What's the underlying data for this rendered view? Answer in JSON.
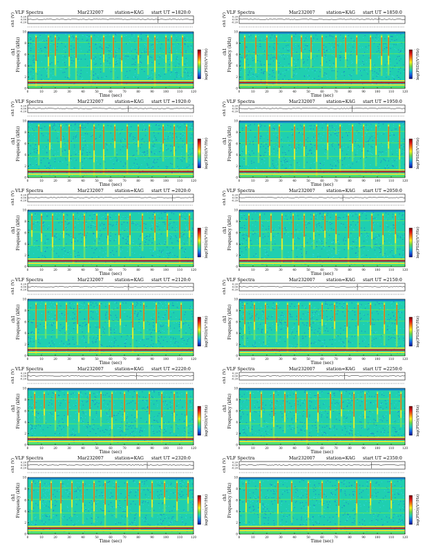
{
  "chart_data": [
    {
      "type": "heatmap",
      "title": "VLF Spectra",
      "date": "Mar232007",
      "station": "station=KAG",
      "start": "start  UT  =1820:0",
      "ylabel_top": "ch1 (V)",
      "ylabel_main": "Frequency (kHz)",
      "ylabel_chan": "ch1",
      "xlabel": "Time  (sec)",
      "colorbar_label": "log(PSD)(V²/Hz)",
      "xlim": [
        0,
        120
      ],
      "ylim": [
        0,
        10
      ],
      "xticks": [
        0,
        10,
        20,
        30,
        40,
        50,
        60,
        70,
        80,
        90,
        100,
        110,
        120
      ],
      "yticks": [
        0,
        2,
        4,
        6,
        8,
        10
      ],
      "top_yticks": [
        "0.20",
        "0.00",
        "-0.20"
      ],
      "bursts": [
        6,
        15,
        20,
        30,
        35,
        46,
        55,
        62,
        68,
        80,
        87,
        92,
        100,
        104,
        112
      ],
      "cbar_ticks": [
        "-",
        "-",
        "-"
      ]
    },
    {
      "type": "heatmap",
      "title": "VLF Spectra",
      "date": "Mar232007",
      "station": "station=KAG",
      "start": "start  UT  =1850:0",
      "ylabel_top": "ch1 (V)",
      "ylabel_main": "Frequency (kHz)",
      "ylabel_chan": "ch1",
      "xlabel": "Time  (sec)",
      "colorbar_label": "log(PSD)(V²/Hz)",
      "xlim": [
        0,
        120
      ],
      "ylim": [
        0,
        10
      ],
      "xticks": [
        0,
        10,
        20,
        30,
        40,
        50,
        60,
        70,
        80,
        90,
        100,
        110,
        120
      ],
      "yticks": [
        0,
        2,
        4,
        6,
        8,
        10
      ],
      "top_yticks": [
        "0.20",
        "0.00",
        "-0.20"
      ],
      "bursts": [
        4,
        12,
        20,
        27,
        38,
        45,
        52,
        60,
        70,
        77,
        85,
        95,
        103,
        108
      ],
      "cbar_ticks": [
        "-",
        "-",
        "-"
      ]
    },
    {
      "type": "heatmap",
      "title": "VLF Spectra",
      "date": "Mar232007",
      "station": "station=KAG",
      "start": "start  UT  =1920:0",
      "ylabel_top": "ch1 (V)",
      "ylabel_main": "Frequency (kHz)",
      "ylabel_chan": "ch1",
      "xlabel": "Time  (sec)",
      "colorbar_label": "log(PSD)(V²/Hz)",
      "xlim": [
        0,
        120
      ],
      "ylim": [
        0,
        10
      ],
      "xticks": [
        0,
        10,
        20,
        30,
        40,
        50,
        60,
        70,
        80,
        90,
        100,
        110,
        120
      ],
      "yticks": [
        0,
        2,
        4,
        6,
        8,
        10
      ],
      "top_yticks": [
        "0.20",
        "0.00",
        "-0.20"
      ],
      "bursts": [
        8,
        16,
        24,
        30,
        38,
        48,
        55,
        63,
        72,
        80,
        88,
        98,
        106,
        115
      ],
      "cbar_ticks": [
        "-",
        "-",
        "-"
      ]
    },
    {
      "type": "heatmap",
      "title": "VLF Spectra",
      "date": "Mar232007",
      "station": "station=KAG",
      "start": "start  UT  =1950:0",
      "ylabel_top": "ch1 (V)",
      "ylabel_main": "Frequency (kHz)",
      "ylabel_chan": "ch1",
      "xlabel": "Time  (sec)",
      "colorbar_label": "log(PSD)(V²/Hz)",
      "xlim": [
        0,
        120
      ],
      "ylim": [
        0,
        10
      ],
      "xticks": [
        0,
        10,
        20,
        30,
        40,
        50,
        60,
        70,
        80,
        90,
        100,
        110,
        120
      ],
      "yticks": [
        0,
        2,
        4,
        6,
        8,
        10
      ],
      "top_yticks": [
        "0.20",
        "0.00",
        "-0.20"
      ],
      "bursts": [
        5,
        14,
        22,
        29,
        40,
        47,
        56,
        64,
        73,
        82,
        90,
        99,
        108,
        116
      ],
      "cbar_ticks": [
        "-",
        "-",
        "-"
      ]
    },
    {
      "type": "heatmap",
      "title": "VLF Spectra",
      "date": "Mar232007",
      "station": "station=KAG",
      "start": "start  UT  =2020:0",
      "ylabel_top": "ch1 (V)",
      "ylabel_main": "Frequency (kHz)",
      "ylabel_chan": "ch1",
      "xlabel": "Time  (sec)",
      "colorbar_label": "log(PSD)(V²/Hz)",
      "xlim": [
        0,
        120
      ],
      "ylim": [
        0,
        10
      ],
      "xticks": [
        0,
        10,
        20,
        30,
        40,
        50,
        60,
        70,
        80,
        90,
        100,
        110,
        120
      ],
      "yticks": [
        0,
        2,
        4,
        6,
        8,
        10
      ],
      "top_yticks": [
        "0.20",
        "0.00",
        "-0.20"
      ],
      "bursts": [
        3,
        10,
        18,
        26,
        33,
        41,
        50,
        58,
        66,
        74,
        83,
        92,
        101,
        110,
        117
      ],
      "cbar_ticks": [
        "-",
        "-",
        "-"
      ]
    },
    {
      "type": "heatmap",
      "title": "VLF Spectra",
      "date": "Mar232007",
      "station": "station=KAG",
      "start": "start  UT  =2050:0",
      "ylabel_top": "ch1 (V)",
      "ylabel_main": "Frequency (kHz)",
      "ylabel_chan": "ch1",
      "xlabel": "Time  (sec)",
      "colorbar_label": "log(PSD)(V²/Hz)",
      "xlim": [
        0,
        120
      ],
      "ylim": [
        0,
        10
      ],
      "xticks": [
        0,
        10,
        20,
        30,
        40,
        50,
        60,
        70,
        80,
        90,
        100,
        110,
        120
      ],
      "yticks": [
        0,
        2,
        4,
        6,
        8,
        10
      ],
      "top_yticks": [
        "0.20",
        "0.00",
        "-0.20"
      ],
      "bursts": [
        7,
        15,
        23,
        31,
        39,
        47,
        54,
        62,
        70,
        79,
        87,
        96,
        104,
        113
      ],
      "cbar_ticks": [
        "-",
        "-",
        "-"
      ]
    },
    {
      "type": "heatmap",
      "title": "VLF Spectra",
      "date": "Mar232007",
      "station": "station=KAG",
      "start": "start  UT  =2120:0",
      "ylabel_top": "ch1 (V)",
      "ylabel_main": "Frequency (kHz)",
      "ylabel_chan": "ch1",
      "xlabel": "Time  (sec)",
      "colorbar_label": "log(PSD)(V²/Hz)",
      "xlim": [
        0,
        120
      ],
      "ylim": [
        0,
        10
      ],
      "xticks": [
        0,
        10,
        20,
        30,
        40,
        50,
        60,
        70,
        80,
        90,
        100,
        110,
        120
      ],
      "yticks": [
        0,
        2,
        4,
        6,
        8,
        10
      ],
      "top_yticks": [
        "0.20",
        "0.00",
        "-0.20"
      ],
      "bursts": [
        6,
        13,
        21,
        28,
        36,
        44,
        52,
        59,
        67,
        76,
        84,
        93,
        102,
        111
      ],
      "cbar_ticks": [
        "-",
        "-",
        "-"
      ]
    },
    {
      "type": "heatmap",
      "title": "VLF Spectra",
      "date": "Mar232007",
      "station": "station=KAG",
      "start": "start  UT  =2150:0",
      "ylabel_top": "ch1 (V)",
      "ylabel_main": "Frequency (kHz)",
      "ylabel_chan": "ch1",
      "xlabel": "Time  (sec)",
      "colorbar_label": "log(PSD)(V²/Hz)",
      "xlim": [
        0,
        120
      ],
      "ylim": [
        0,
        10
      ],
      "xticks": [
        0,
        10,
        20,
        30,
        40,
        50,
        60,
        70,
        80,
        90,
        100,
        110,
        120
      ],
      "yticks": [
        0,
        2,
        4,
        6,
        8,
        10
      ],
      "top_yticks": [
        "0.20",
        "0.00",
        "-0.20"
      ],
      "bursts": [
        4,
        11,
        19,
        27,
        35,
        43,
        51,
        60,
        69,
        78,
        86,
        95,
        105,
        114
      ],
      "cbar_ticks": [
        "-",
        "-",
        "-"
      ]
    },
    {
      "type": "heatmap",
      "title": "VLF Spectra",
      "date": "Mar232007",
      "station": "station=KAG",
      "start": "start  UT  =2220:0",
      "ylabel_top": "ch1 (V)",
      "ylabel_main": "Frequency (kHz)",
      "ylabel_chan": "ch1",
      "xlabel": "Time  (sec)",
      "colorbar_label": "log(PSD)(V²/Hz)",
      "xlim": [
        0,
        120
      ],
      "ylim": [
        0,
        10
      ],
      "xticks": [
        0,
        10,
        20,
        30,
        40,
        50,
        60,
        70,
        80,
        90,
        100,
        110,
        120
      ],
      "yticks": [
        0,
        2,
        4,
        6,
        8,
        10
      ],
      "top_yticks": [
        "0.20",
        "0.00",
        "-0.20"
      ],
      "bursts": [
        5,
        12,
        20,
        29,
        37,
        45,
        53,
        61,
        70,
        79,
        88,
        97,
        106,
        115
      ],
      "cbar_ticks": [
        "-",
        "-",
        "-"
      ]
    },
    {
      "type": "heatmap",
      "title": "VLF Spectra",
      "date": "Mar232007",
      "station": "station=KAG",
      "start": "start  UT  =2250:0",
      "ylabel_top": "ch1 (V)",
      "ylabel_main": "Frequency (kHz)",
      "ylabel_chan": "ch1",
      "xlabel": "Time  (sec)",
      "colorbar_label": "log(PSD)(V²/Hz)",
      "xlim": [
        0,
        120
      ],
      "ylim": [
        0,
        10
      ],
      "xticks": [
        0,
        10,
        20,
        30,
        40,
        50,
        60,
        70,
        80,
        90,
        100,
        110,
        120
      ],
      "yticks": [
        0,
        2,
        4,
        6,
        8,
        10
      ],
      "top_yticks": [
        "0.20",
        "0.00",
        "-0.20"
      ],
      "bursts": [
        8,
        16,
        25,
        33,
        41,
        49,
        57,
        66,
        74,
        83,
        91,
        100,
        109,
        117
      ],
      "cbar_ticks": [
        "-",
        "-",
        "-"
      ]
    },
    {
      "type": "heatmap",
      "title": "VLF Spectra",
      "date": "Mar232007",
      "station": "station=KAG",
      "start": "start  UT  =2320:0",
      "ylabel_top": "ch1 (V)",
      "ylabel_main": "Frequency (kHz)",
      "ylabel_chan": "ch1",
      "xlabel": "Time  (sec)",
      "colorbar_label": "log(PSD)(V²/Hz)",
      "xlim": [
        0,
        120
      ],
      "ylim": [
        0,
        10
      ],
      "xticks": [
        0,
        10,
        20,
        30,
        40,
        50,
        60,
        70,
        80,
        90,
        100,
        110,
        120
      ],
      "yticks": [
        0,
        2,
        4,
        6,
        8,
        10
      ],
      "top_yticks": [
        "0.20",
        "0.00",
        "-0.20"
      ],
      "bursts": [
        3,
        9,
        17,
        24,
        32,
        40,
        48,
        56,
        64,
        72,
        81,
        90,
        99,
        108,
        116
      ],
      "cbar_ticks": [
        "-",
        "-",
        "-"
      ]
    },
    {
      "type": "heatmap",
      "title": "VLF Spectra",
      "date": "Mar232007",
      "station": "station=KAG",
      "start": "start  UT  =2350:0",
      "ylabel_top": "ch1 (V)",
      "ylabel_main": "Frequency (kHz)",
      "ylabel_chan": "ch1",
      "xlabel": "Time  (sec)",
      "colorbar_label": "log(PSD)(V²/Hz)",
      "xlim": [
        0,
        120
      ],
      "ylim": [
        0,
        10
      ],
      "xticks": [
        0,
        10,
        20,
        30,
        40,
        50,
        60,
        70,
        80,
        90,
        100,
        110,
        120
      ],
      "yticks": [
        0,
        2,
        4,
        6,
        8,
        10
      ],
      "top_yticks": [
        "0.20",
        "0.00",
        "-0.20"
      ],
      "bursts": [
        5,
        15,
        28,
        38,
        50,
        60,
        72,
        85,
        95,
        110
      ],
      "cbar_ticks": [
        "-",
        "-",
        "-"
      ]
    }
  ],
  "colors": {
    "background": "#1fcfb0",
    "noise_blue": "#1a6dd6",
    "noise_cyan": "#38d7f0",
    "burst_green": "#6fe06a",
    "burst_yellow": "#f2ea2a",
    "burst_red": "#d11a1a",
    "line_green": "#5ee85a",
    "band_red": "#cc1212",
    "cbar": [
      "#7a0000",
      "#e41a1a",
      "#f57f12",
      "#f7f21c",
      "#6cd74a",
      "#15c7c7",
      "#1a62e6",
      "#0b0f8a"
    ]
  }
}
